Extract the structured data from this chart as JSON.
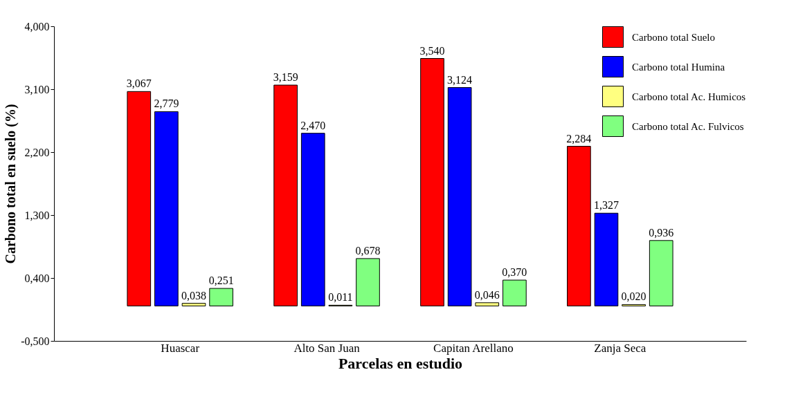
{
  "chart_data": {
    "type": "bar",
    "xlabel": "Parcelas en estudio",
    "ylabel": "Carbono total en suelo (%)",
    "categories": [
      "Huascar",
      "Alto San Juan",
      "Capitan Arellano",
      "Zanja Seca"
    ],
    "ylim": [
      -0.5,
      4.0
    ],
    "yticks": [
      {
        "value": -0.5,
        "label": "-0,500"
      },
      {
        "value": 0.4,
        "label": "0,400"
      },
      {
        "value": 1.3,
        "label": "1,300"
      },
      {
        "value": 2.2,
        "label": "2,200"
      },
      {
        "value": 3.1,
        "label": "3,100"
      },
      {
        "value": 4.0,
        "label": "4,000"
      }
    ],
    "series": [
      {
        "name": "Carbono total Suelo",
        "color": "#ff0000",
        "values": [
          3.067,
          3.159,
          3.54,
          2.284
        ],
        "value_labels": [
          "3,067",
          "3,159",
          "3,540",
          "2,284"
        ]
      },
      {
        "name": "Carbono total Humina",
        "color": "#0000ff",
        "values": [
          2.779,
          2.47,
          3.124,
          1.327
        ],
        "value_labels": [
          "2,779",
          "2,470",
          "3,124",
          "1,327"
        ]
      },
      {
        "name": "Carbono total Ac. Humicos",
        "color": "#ffff80",
        "values": [
          0.038,
          0.011,
          0.046,
          0.02
        ],
        "value_labels": [
          "0,038",
          "0,011",
          "0,046",
          "0,020"
        ]
      },
      {
        "name": "Carbono total Ac. Fulvicos",
        "color": "#80ff80",
        "values": [
          0.251,
          0.678,
          0.37,
          0.936
        ],
        "value_labels": [
          "0,251",
          "0,678",
          "0,370",
          "0,936"
        ]
      }
    ],
    "legend": "top right",
    "grid": false
  }
}
